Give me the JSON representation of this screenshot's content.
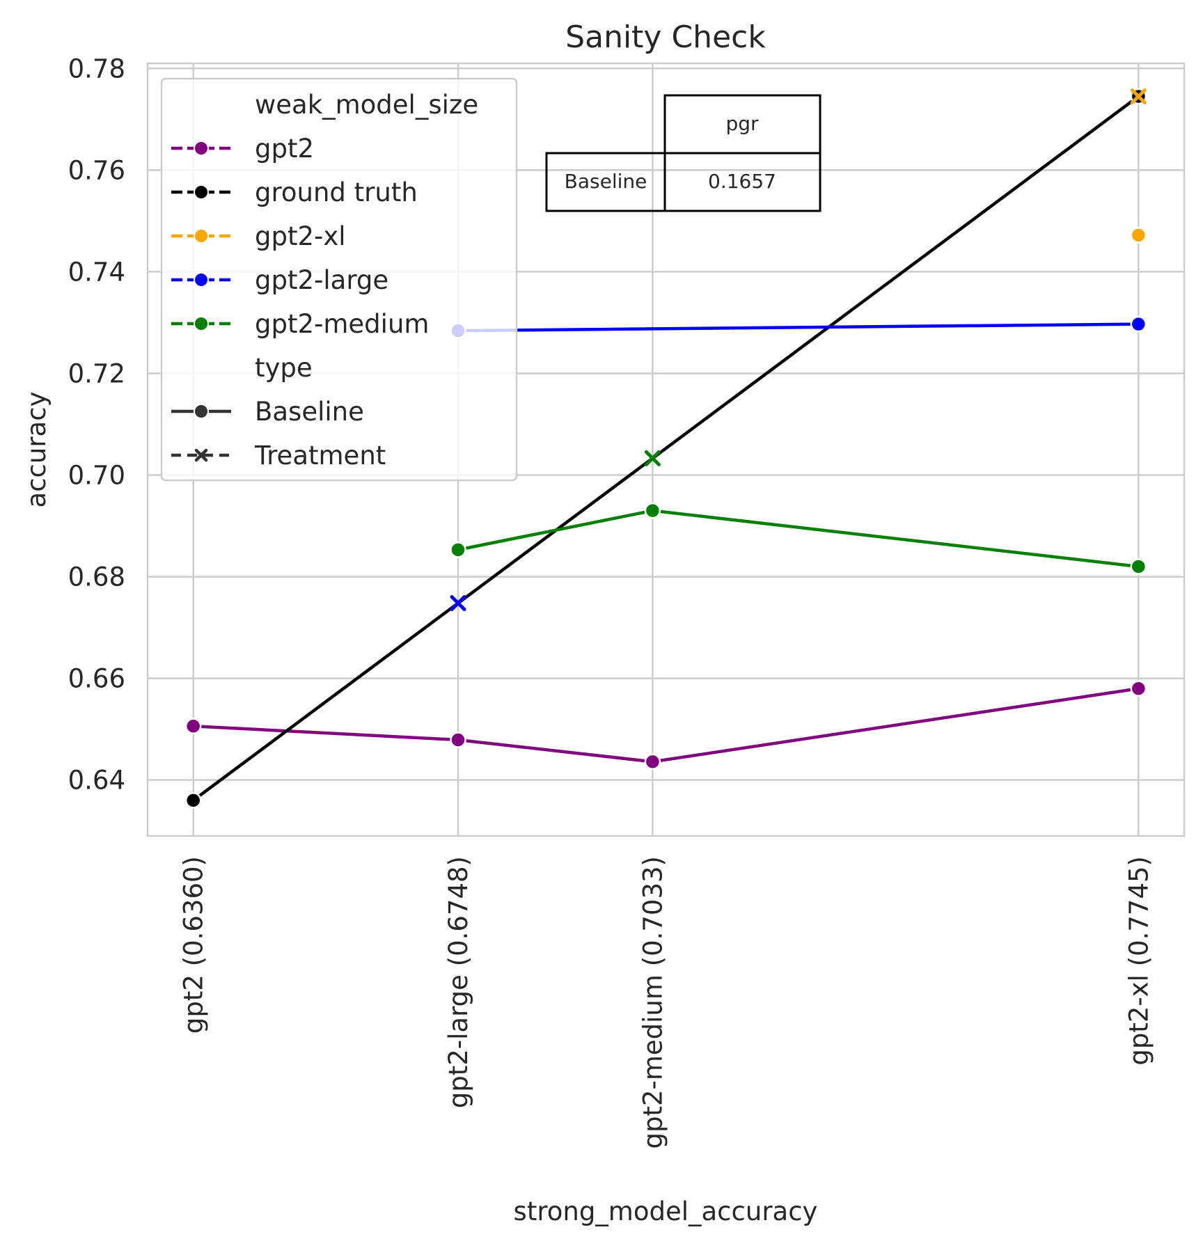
{
  "chart_data": {
    "type": "line",
    "title": "Sanity Check",
    "xlabel": "strong_model_accuracy",
    "ylabel": "accuracy",
    "x": [
      0.636,
      0.6748,
      0.7033,
      0.7745
    ],
    "x_tick_labels": [
      "gpt2 (0.6360)",
      "gpt2-large (0.6748)",
      "gpt2-medium (0.7033)",
      "gpt2-xl (0.7745)"
    ],
    "xlim": [
      0.6293,
      0.7812
    ],
    "ylim": [
      0.629,
      0.781
    ],
    "y_ticks": [
      0.64,
      0.66,
      0.68,
      0.7,
      0.72,
      0.74,
      0.76,
      0.78
    ],
    "y_tick_labels": [
      "0.64",
      "0.66",
      "0.68",
      "0.70",
      "0.72",
      "0.74",
      "0.76",
      "0.78"
    ],
    "grid": true,
    "series": [
      {
        "name": "gpt2",
        "color": "#800080",
        "type": "Baseline",
        "points": [
          [
            0.636,
            0.6506
          ],
          [
            0.6748,
            0.6479
          ],
          [
            0.7033,
            0.6436
          ],
          [
            0.7745,
            0.658
          ]
        ]
      },
      {
        "name": "ground truth",
        "color": "#000000",
        "type": "Baseline",
        "points": [
          [
            0.636,
            0.636
          ],
          [
            0.7745,
            0.7745
          ]
        ]
      },
      {
        "name": "gpt2-xl",
        "color": "#FFA500",
        "type": "Baseline",
        "points": [
          [
            0.7745,
            0.7472
          ]
        ]
      },
      {
        "name": "gpt2-large",
        "color": "#0000FF",
        "type": "Baseline",
        "points": [
          [
            0.6748,
            0.7284
          ],
          [
            0.7745,
            0.7297
          ]
        ]
      },
      {
        "name": "gpt2-medium",
        "color": "#008000",
        "type": "Baseline",
        "points": [
          [
            0.6748,
            0.6853
          ],
          [
            0.7033,
            0.693
          ],
          [
            0.7745,
            0.682
          ]
        ]
      },
      {
        "name": "gpt2-large",
        "color": "#0000FF",
        "type": "Treatment",
        "points": [
          [
            0.6748,
            0.6748
          ]
        ]
      },
      {
        "name": "gpt2-medium",
        "color": "#008000",
        "type": "Treatment",
        "points": [
          [
            0.7033,
            0.7033
          ]
        ]
      },
      {
        "name": "gpt2-xl",
        "color": "#FFA500",
        "type": "Treatment",
        "points": [
          [
            0.7745,
            0.7745
          ]
        ]
      }
    ],
    "legend": {
      "placement": "top-left",
      "entries": [
        {
          "label": "weak_model_size",
          "kind": "header"
        },
        {
          "label": "gpt2",
          "kind": "line",
          "color": "#800080"
        },
        {
          "label": "ground truth",
          "kind": "line",
          "color": "#000000"
        },
        {
          "label": "gpt2-xl",
          "kind": "line",
          "color": "#FFA500"
        },
        {
          "label": "gpt2-large",
          "kind": "line",
          "color": "#0000FF"
        },
        {
          "label": "gpt2-medium",
          "kind": "line",
          "color": "#008000"
        },
        {
          "label": "type",
          "kind": "header"
        },
        {
          "label": "Baseline",
          "kind": "style-solid",
          "color": "#333333"
        },
        {
          "label": "Treatment",
          "kind": "style-dashed",
          "color": "#333333"
        }
      ]
    },
    "table": {
      "col_header": "pgr",
      "rows": [
        {
          "label": "Baseline",
          "value": "0.1657"
        }
      ]
    }
  }
}
